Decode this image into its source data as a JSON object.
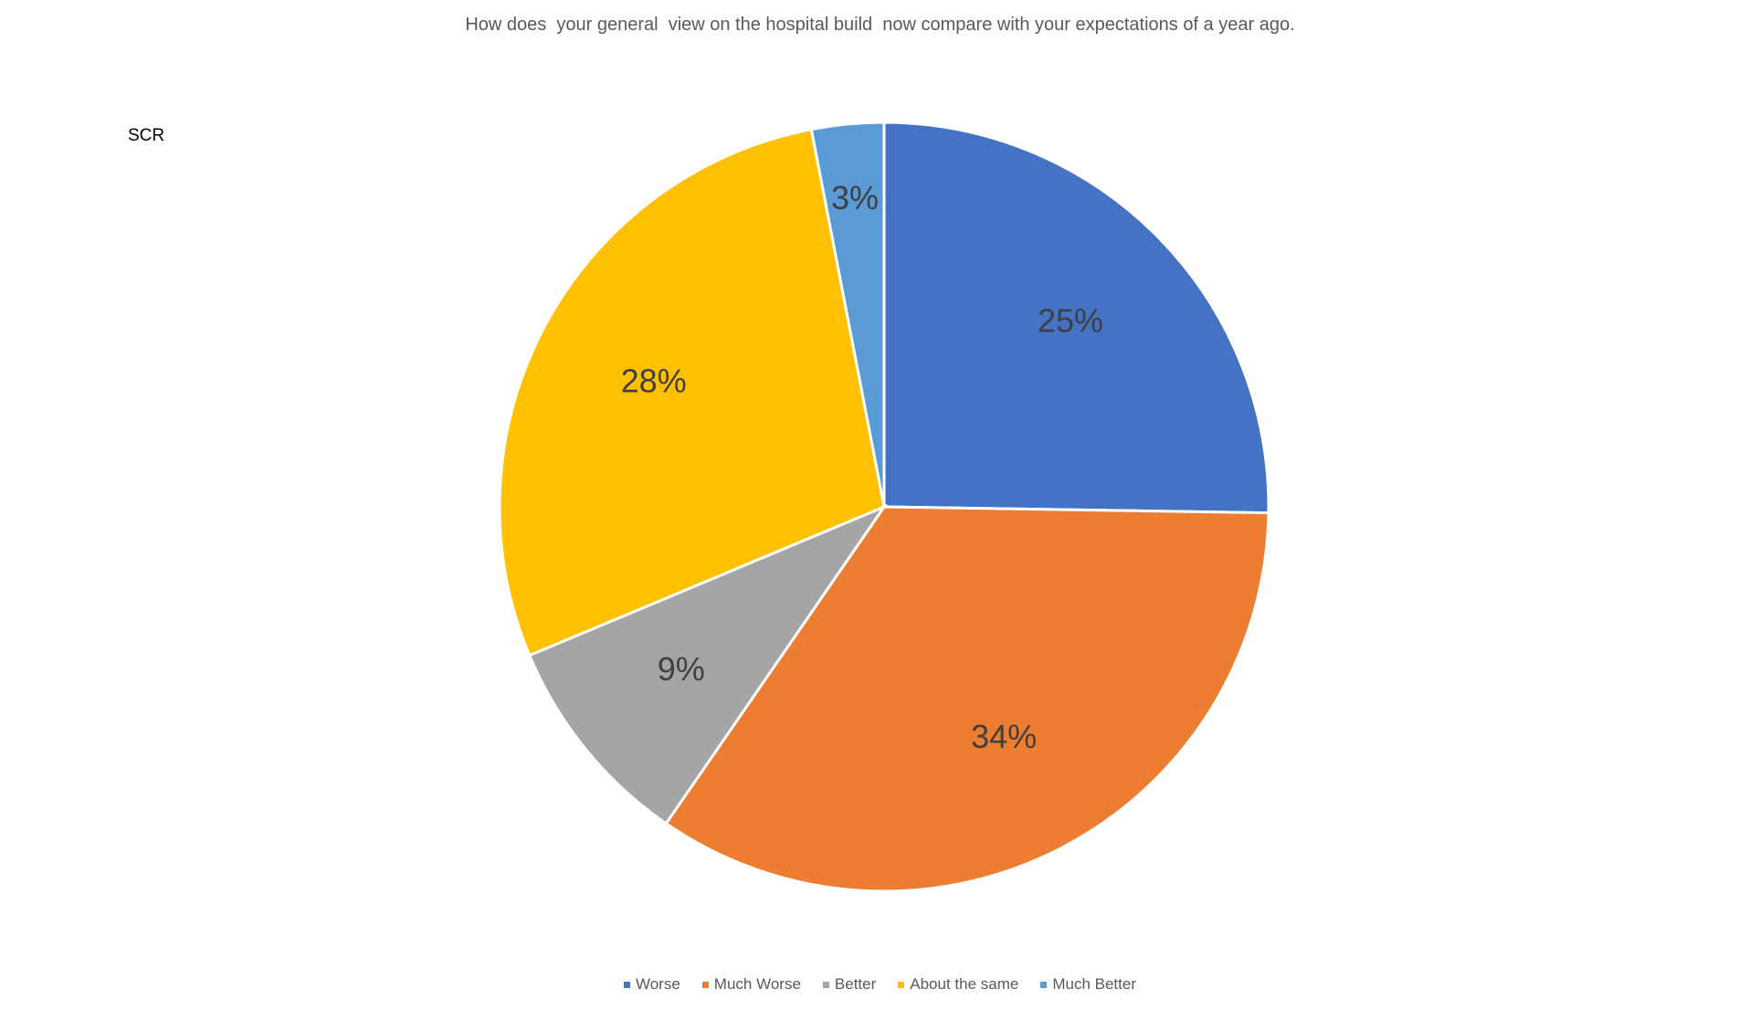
{
  "chart_data": {
    "type": "pie",
    "title": "How does  your general  view on the hospital build  now compare with your expectations of a year ago.",
    "corner_label": "SCR",
    "categories": [
      "Worse",
      "Much Worse",
      "Better",
      "About the same",
      "Much Better"
    ],
    "values": [
      25,
      34,
      9,
      28,
      3
    ],
    "data_labels": [
      "25%",
      "34%",
      "9%",
      "28%",
      "3%"
    ],
    "colors": [
      "#4472C4",
      "#ED7D31",
      "#A5A5A5",
      "#FFC000",
      "#5B9BD5"
    ],
    "legend_position": "bottom"
  }
}
